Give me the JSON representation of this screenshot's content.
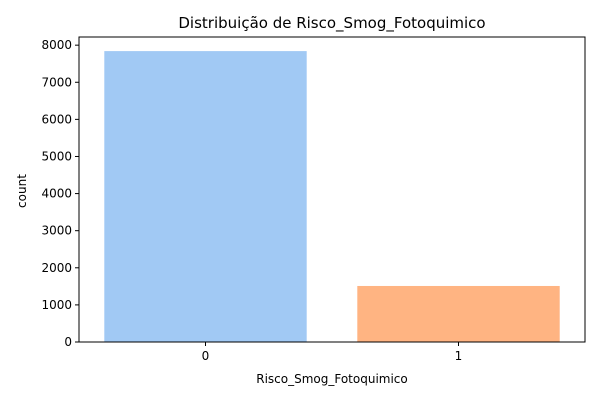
{
  "chart_data": {
    "type": "bar",
    "title": "Distribuição de Risco_Smog_Fotoquimico",
    "xlabel": "Risco_Smog_Fotoquimico",
    "ylabel": "count",
    "categories": [
      "0",
      "1"
    ],
    "values": [
      7840,
      1510
    ],
    "colors": [
      "#a1c9f4",
      "#ffb482"
    ],
    "ylim": [
      0,
      8220
    ],
    "yticks": [
      0,
      1000,
      2000,
      3000,
      4000,
      5000,
      6000,
      7000,
      8000
    ],
    "grid": false,
    "legend": "none"
  }
}
